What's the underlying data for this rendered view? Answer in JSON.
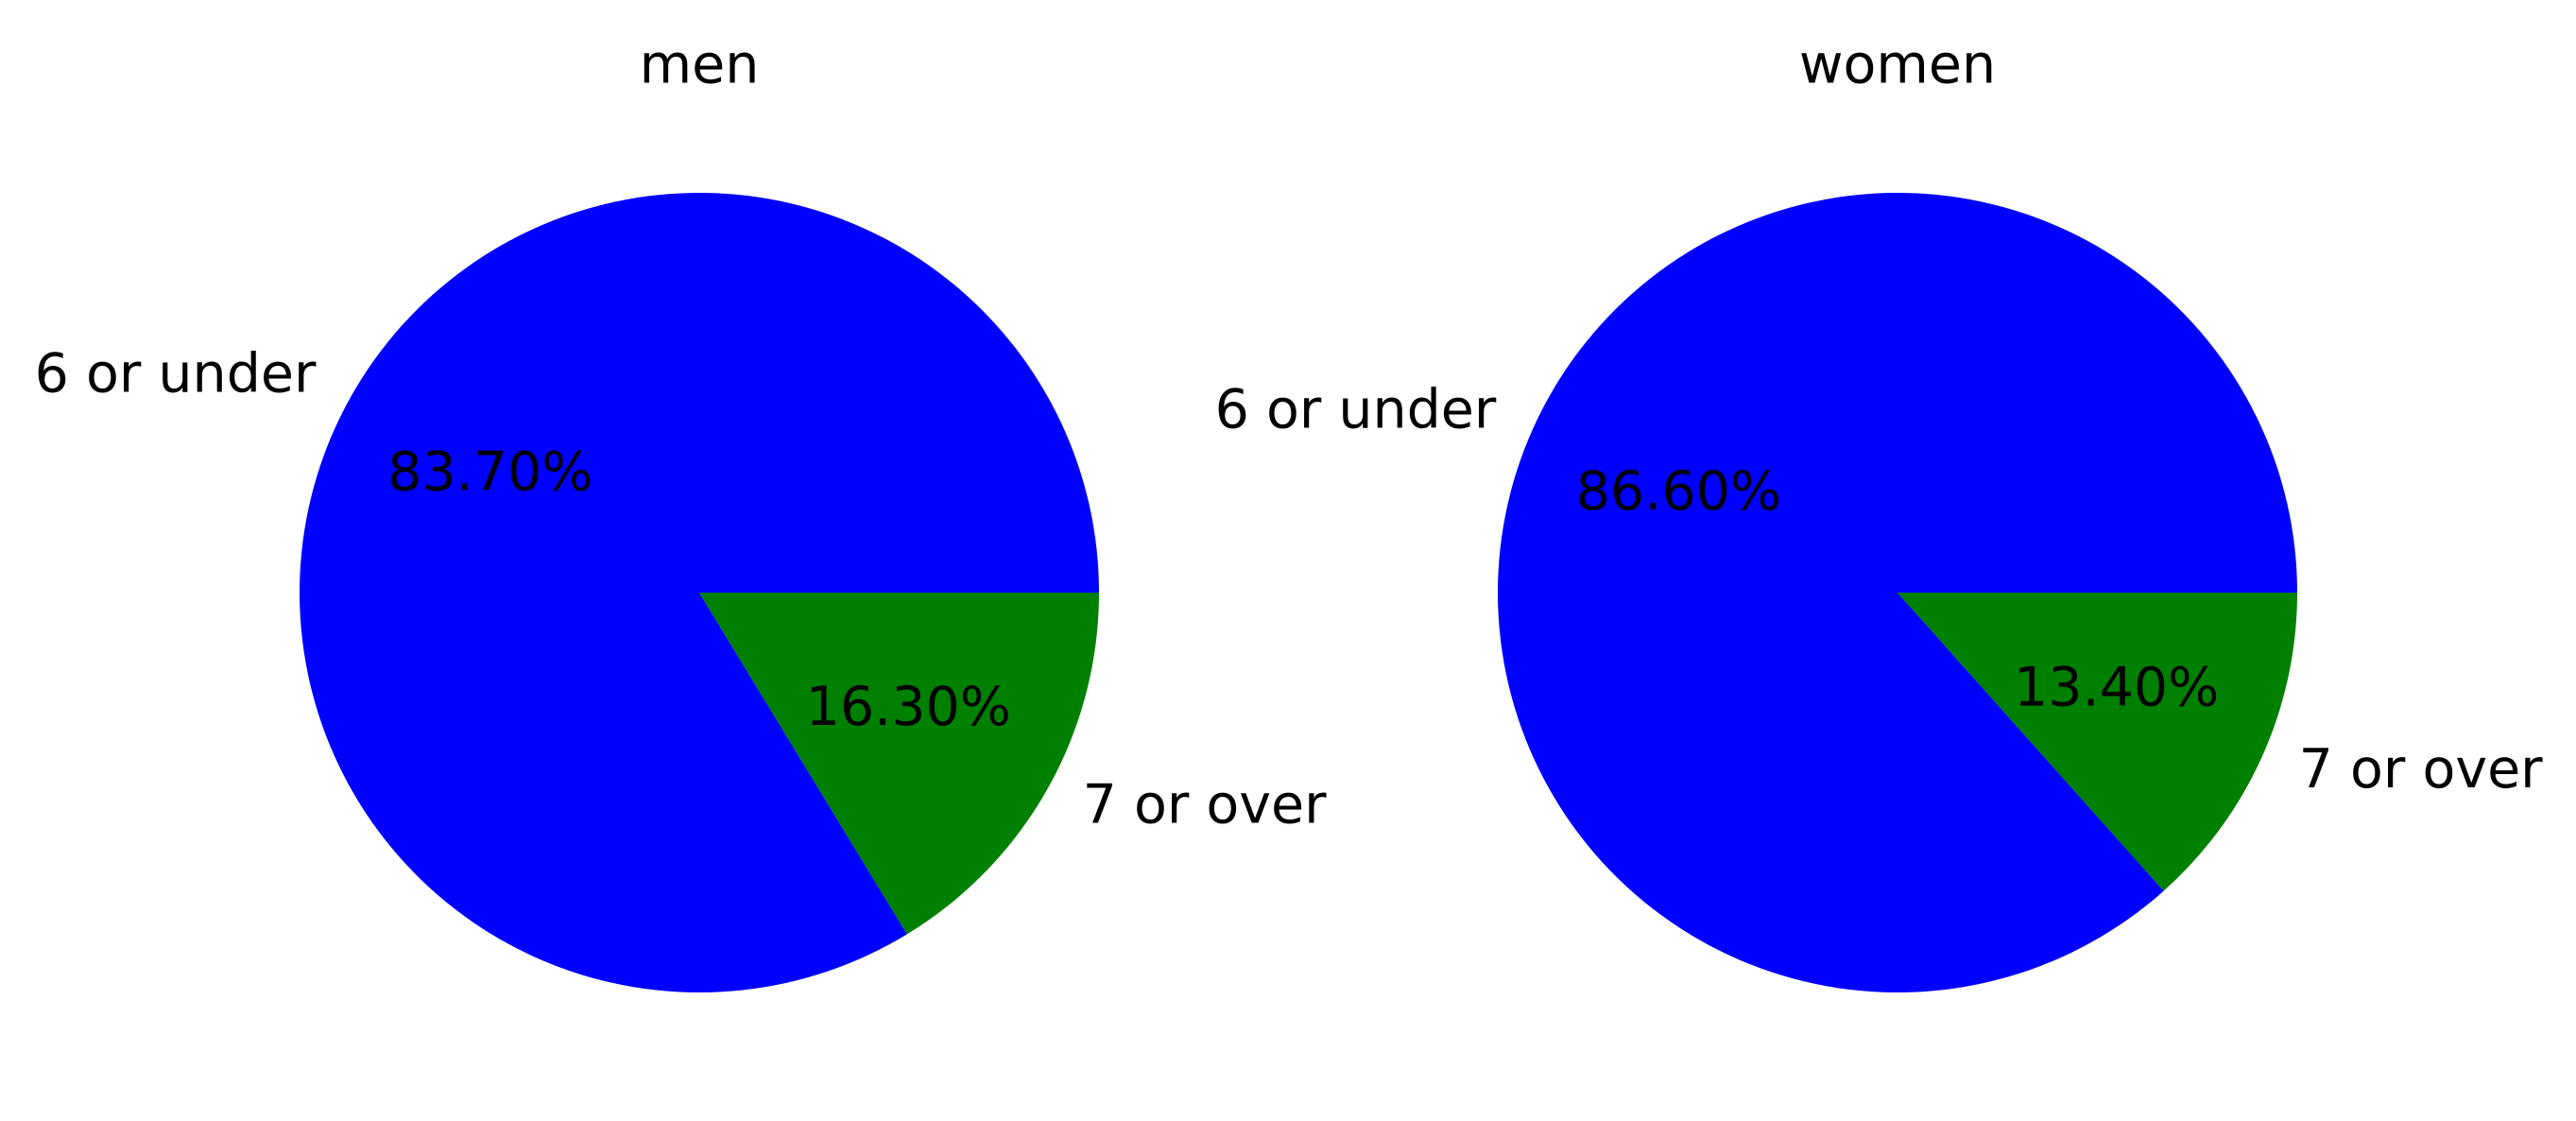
{
  "chart_data": [
    {
      "type": "pie",
      "title": "men",
      "categories": [
        "6 or under",
        "7 or over"
      ],
      "values": [
        83.7,
        16.3
      ],
      "percent_labels": [
        "83.70%",
        "16.30%"
      ],
      "colors": [
        "#0000ff",
        "#008000"
      ]
    },
    {
      "type": "pie",
      "title": "women",
      "categories": [
        "6 or under",
        "7 or over"
      ],
      "values": [
        86.6,
        13.4
      ],
      "percent_labels": [
        "86.60%",
        "13.40%"
      ],
      "colors": [
        "#0000ff",
        "#008000"
      ]
    }
  ]
}
